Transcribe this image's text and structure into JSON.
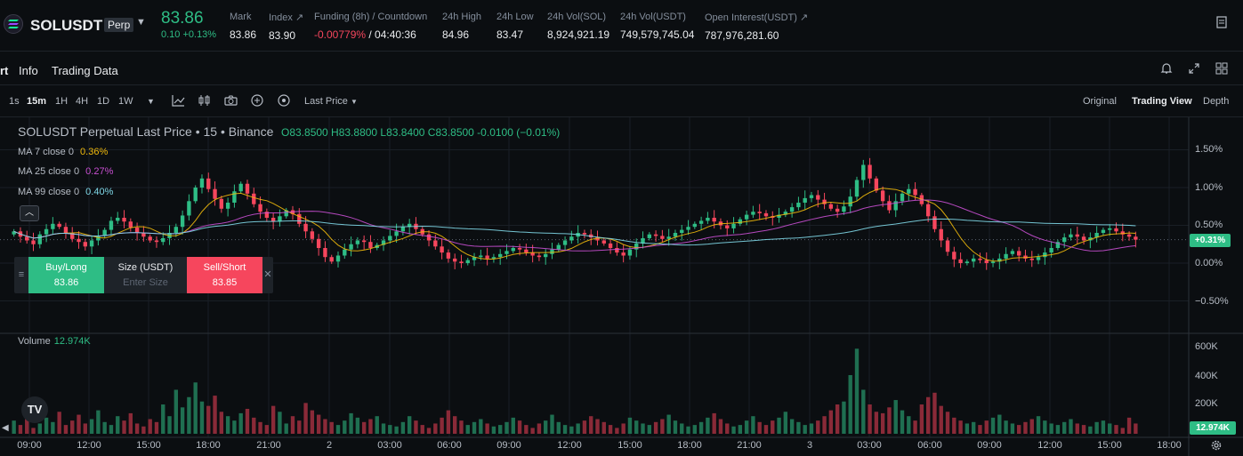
{
  "ticker": {
    "symbol": "SOLUSDT",
    "tag": "Perp",
    "last_price": "83.86",
    "change": "0.10 +0.13%",
    "stats": [
      {
        "label": "Mark",
        "value": "83.86"
      },
      {
        "label": "Index ↗",
        "value": "83.90"
      },
      {
        "label": "Funding (8h) / Countdown",
        "value_neg": "-0.00779%",
        "value_rest": " / 04:40:36"
      },
      {
        "label": "24h High",
        "value": "84.96"
      },
      {
        "label": "24h Low",
        "value": "83.47"
      },
      {
        "label": "24h Vol(SOL)",
        "value": "8,924,921.19"
      },
      {
        "label": "24h Vol(USDT)",
        "value": "749,579,745.04"
      },
      {
        "label": "Open Interest(USDT) ↗",
        "value": "787,976,281.60"
      }
    ]
  },
  "tabs": {
    "chart": "rt",
    "info": "Info",
    "trading_data": "Trading Data"
  },
  "toolbar": {
    "timeframes": [
      "1s",
      "15m",
      "1H",
      "4H",
      "1D",
      "1W"
    ],
    "active_timeframe": "15m",
    "price_type": "Last Price",
    "views": [
      "Original",
      "Trading View",
      "Depth"
    ],
    "active_view": "Trading View"
  },
  "legend": {
    "title": "SOLUSDT Perpetual Last Price • 15 • Binance",
    "ohlc": "O83.8500  H83.8800  L83.8400  C83.8500  -0.0100 (−0.01%)",
    "ma": [
      {
        "label": "MA 7 close 0",
        "value": "0.36%",
        "color": "#f0b90b"
      },
      {
        "label": "MA 25 close 0",
        "value": "0.27%",
        "color": "#c84fd1"
      },
      {
        "label": "MA 99 close 0",
        "value": "0.40%",
        "color": "#7fd8e8"
      }
    ],
    "volume_label": "Volume",
    "volume_value": "12.974K"
  },
  "order_panel": {
    "buy_label": "Buy/Long",
    "buy_price": "83.86",
    "size_label": "Size (USDT)",
    "size_placeholder": "Enter Size",
    "sell_label": "Sell/Short",
    "sell_price": "83.85"
  },
  "axis": {
    "price_ticks": [
      "1.50%",
      "1.00%",
      "0.50%",
      "0.00%",
      "−0.50%"
    ],
    "current_badge": "+0.31%",
    "volume_ticks": [
      "600K",
      "400K",
      "200K"
    ],
    "volume_badge": "12.974K",
    "time_ticks": [
      "09:00",
      "12:00",
      "15:00",
      "18:00",
      "21:00",
      "2",
      "03:00",
      "06:00",
      "09:00",
      "12:00",
      "15:00",
      "18:00",
      "21:00",
      "3",
      "03:00",
      "06:00",
      "09:00",
      "12:00",
      "15:00",
      "18:00"
    ]
  },
  "colors": {
    "up": "#2ebd85",
    "down": "#f6465d",
    "ma7": "#f0b90b",
    "ma25": "#c84fd1",
    "ma99": "#7fd8e8"
  },
  "chart_data": {
    "type": "candlestick",
    "y_unit": "% change",
    "ylim": [
      -0.5,
      1.5
    ],
    "time_range": [
      "09:00",
      "18:00"
    ],
    "closes": [
      0.42,
      0.35,
      0.3,
      0.25,
      0.38,
      0.45,
      0.52,
      0.48,
      0.4,
      0.32,
      0.28,
      0.22,
      0.3,
      0.36,
      0.44,
      0.56,
      0.6,
      0.55,
      0.47,
      0.4,
      0.35,
      0.3,
      0.28,
      0.33,
      0.4,
      0.48,
      0.63,
      0.82,
      1.0,
      1.12,
      0.98,
      0.85,
      0.72,
      0.8,
      0.95,
      1.05,
      0.92,
      0.78,
      0.68,
      0.6,
      0.55,
      0.62,
      0.7,
      0.65,
      0.52,
      0.42,
      0.32,
      0.2,
      0.08,
      0.02,
      0.1,
      0.18,
      0.25,
      0.3,
      0.28,
      0.2,
      0.24,
      0.3,
      0.36,
      0.42,
      0.48,
      0.52,
      0.45,
      0.38,
      0.3,
      0.22,
      0.14,
      0.06,
      0.02,
      0.0,
      0.04,
      0.08,
      0.1,
      0.06,
      0.08,
      0.12,
      0.16,
      0.2,
      0.18,
      0.14,
      0.1,
      0.08,
      0.12,
      0.18,
      0.24,
      0.3,
      0.35,
      0.4,
      0.38,
      0.34,
      0.3,
      0.26,
      0.2,
      0.14,
      0.1,
      0.18,
      0.26,
      0.33,
      0.38,
      0.36,
      0.32,
      0.35,
      0.4,
      0.44,
      0.48,
      0.52,
      0.56,
      0.6,
      0.55,
      0.5,
      0.46,
      0.52,
      0.58,
      0.64,
      0.68,
      0.66,
      0.62,
      0.6,
      0.64,
      0.68,
      0.74,
      0.8,
      0.86,
      0.9,
      0.84,
      0.78,
      0.72,
      0.68,
      0.75,
      0.88,
      1.1,
      1.3,
      1.12,
      0.96,
      0.82,
      0.7,
      0.82,
      0.92,
      0.98,
      0.9,
      0.78,
      0.62,
      0.45,
      0.3,
      0.15,
      0.05,
      0.0,
      0.02,
      0.06,
      0.04,
      0.0,
      0.02,
      0.06,
      0.12,
      0.16,
      0.1,
      0.06,
      0.04,
      0.08,
      0.14,
      0.2,
      0.28,
      0.34,
      0.38,
      0.35,
      0.3,
      0.34,
      0.4,
      0.44,
      0.46,
      0.42,
      0.38,
      0.35,
      0.31
    ],
    "volume_unit": "USDT",
    "volumes_k": [
      90,
      60,
      120,
      40,
      70,
      110,
      80,
      150,
      60,
      90,
      130,
      70,
      100,
      160,
      80,
      60,
      120,
      90,
      140,
      70,
      50,
      100,
      80,
      200,
      120,
      300,
      180,
      250,
      350,
      220,
      190,
      260,
      150,
      120,
      90,
      140,
      170,
      110,
      80,
      60,
      190,
      150,
      70,
      120,
      90,
      210,
      160,
      130,
      100,
      80,
      60,
      90,
      140,
      110,
      80,
      100,
      120,
      70,
      60,
      50,
      80,
      120,
      90,
      60,
      40,
      70,
      110,
      160,
      120,
      90,
      60,
      80,
      100,
      70,
      50,
      60,
      80,
      110,
      90,
      60,
      40,
      70,
      90,
      130,
      80,
      60,
      50,
      70,
      90,
      120,
      100,
      80,
      60,
      40,
      70,
      110,
      90,
      70,
      60,
      80,
      100,
      130,
      90,
      70,
      50,
      60,
      80,
      110,
      140,
      100,
      70,
      50,
      60,
      90,
      120,
      80,
      60,
      90,
      110,
      150,
      100,
      80,
      60,
      70,
      90,
      120,
      160,
      200,
      220,
      400,
      580,
      300,
      200,
      150,
      140,
      180,
      230,
      160,
      120,
      90,
      200,
      250,
      280,
      190,
      150,
      110,
      90,
      70,
      80,
      60,
      90,
      110,
      130,
      90,
      70,
      60,
      80,
      100,
      120,
      90,
      70,
      60,
      80,
      100,
      70,
      60,
      50,
      80,
      90,
      70,
      60,
      40,
      110,
      70
    ]
  }
}
